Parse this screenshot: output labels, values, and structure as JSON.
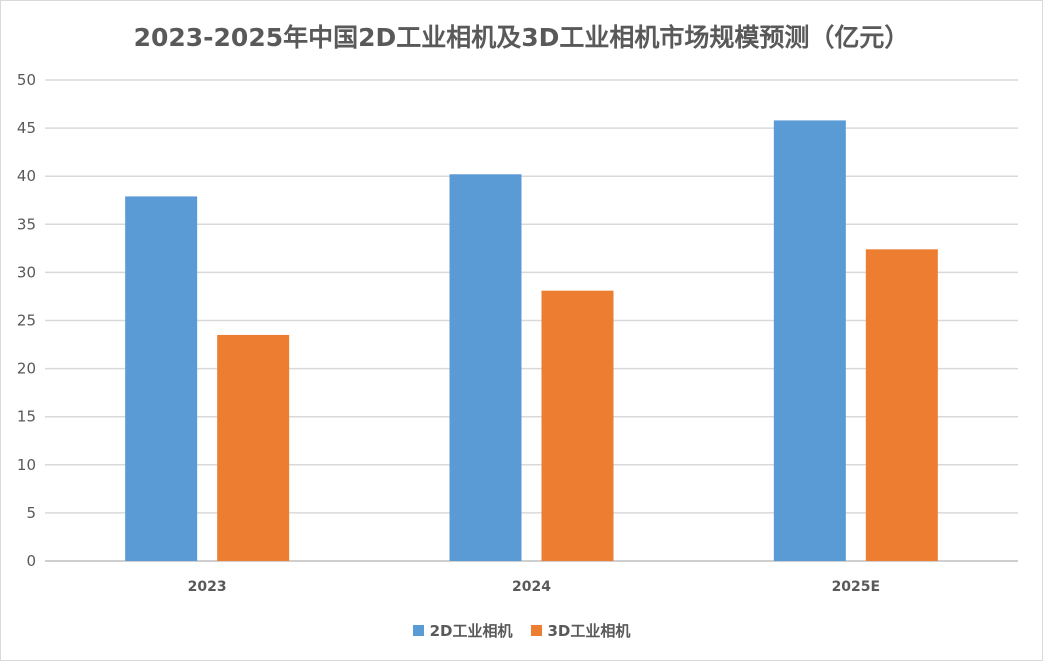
{
  "chart_data": {
    "type": "bar",
    "title": "2023-2025年中国2D工业相机及3D工业相机市场规模预测（亿元）",
    "categories": [
      "2023",
      "2024",
      "2025E"
    ],
    "series": [
      {
        "name": "2D工业相机",
        "values": [
          37.9,
          40.2,
          45.8
        ],
        "color": "#5b9bd5"
      },
      {
        "name": "3D工业相机",
        "values": [
          23.5,
          28.1,
          32.4
        ],
        "color": "#ed7d31"
      }
    ],
    "xlabel": "",
    "ylabel": "",
    "ylim": [
      0,
      50
    ],
    "yticks": [
      0,
      5,
      10,
      15,
      20,
      25,
      30,
      35,
      40,
      45,
      50
    ],
    "grid": true,
    "legend": "bottom"
  }
}
